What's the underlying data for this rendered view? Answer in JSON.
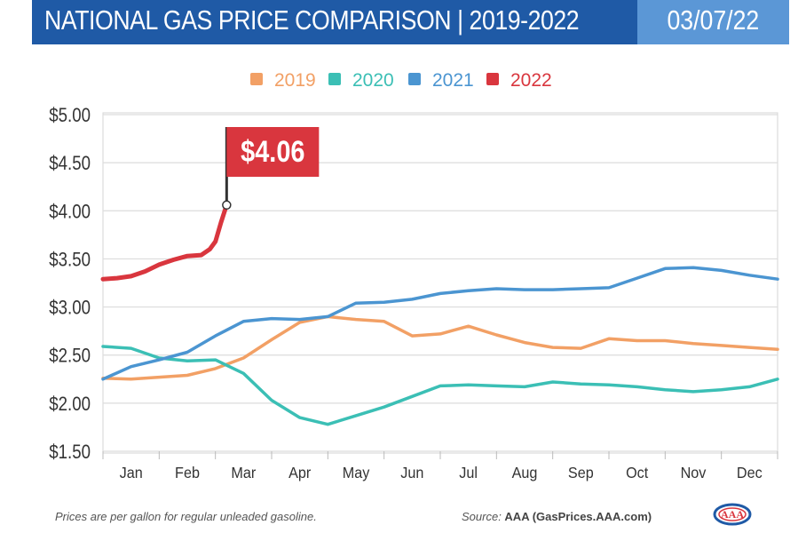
{
  "header": {
    "title": "NATIONAL GAS PRICE COMPARISON | 2019-2022",
    "date": "03/07/22"
  },
  "colors": {
    "2019": "#f2a065",
    "2020": "#3bbfb5",
    "2021": "#4b95d1",
    "2022": "#d9363e",
    "header_dark": "#1f5aa6",
    "header_light": "#5b97d6"
  },
  "chart_data": {
    "type": "line",
    "title": "NATIONAL GAS PRICE COMPARISON | 2019-2022",
    "categories": [
      "Jan",
      "Feb",
      "Mar",
      "Apr",
      "May",
      "Jun",
      "Jul",
      "Aug",
      "Sep",
      "Oct",
      "Nov",
      "Dec"
    ],
    "y_ticks": [
      "$5.00",
      "$4.50",
      "$4.00",
      "$3.50",
      "$3.00",
      "$2.50",
      "$2.00",
      "$1.50"
    ],
    "ylim": [
      1.5,
      5.0
    ],
    "grid": true,
    "legend": [
      "2019",
      "2020",
      "2021",
      "2022"
    ],
    "legend_position": "top",
    "callout": {
      "label": "$4.06",
      "x": 2.2,
      "y": 4.06
    },
    "series": [
      {
        "name": "2019",
        "x": [
          0,
          0.5,
          1,
          1.5,
          2,
          2.5,
          3,
          3.5,
          4,
          4.5,
          5,
          5.5,
          6,
          6.5,
          7,
          7.5,
          8,
          8.5,
          9,
          9.5,
          10,
          10.5,
          11,
          11.5,
          12
        ],
        "values": [
          2.26,
          2.25,
          2.27,
          2.29,
          2.36,
          2.47,
          2.66,
          2.84,
          2.9,
          2.87,
          2.85,
          2.7,
          2.72,
          2.8,
          2.71,
          2.63,
          2.58,
          2.57,
          2.67,
          2.65,
          2.65,
          2.62,
          2.6,
          2.58,
          2.56
        ]
      },
      {
        "name": "2020",
        "x": [
          0,
          0.5,
          1,
          1.5,
          2,
          2.5,
          3,
          3.5,
          4,
          4.5,
          5,
          5.5,
          6,
          6.5,
          7,
          7.5,
          8,
          8.5,
          9,
          9.5,
          10,
          10.5,
          11,
          11.5,
          12
        ],
        "values": [
          2.59,
          2.57,
          2.47,
          2.44,
          2.45,
          2.31,
          2.03,
          1.85,
          1.78,
          1.87,
          1.96,
          2.07,
          2.18,
          2.19,
          2.18,
          2.17,
          2.22,
          2.2,
          2.19,
          2.17,
          2.14,
          2.12,
          2.14,
          2.17,
          2.25
        ]
      },
      {
        "name": "2021",
        "x": [
          0,
          0.5,
          1,
          1.5,
          2,
          2.5,
          3,
          3.5,
          4,
          4.5,
          5,
          5.5,
          6,
          6.5,
          7,
          7.5,
          8,
          8.5,
          9,
          9.5,
          10,
          10.5,
          11,
          11.5,
          12
        ],
        "values": [
          2.25,
          2.38,
          2.45,
          2.53,
          2.7,
          2.85,
          2.88,
          2.87,
          2.9,
          3.04,
          3.05,
          3.08,
          3.14,
          3.17,
          3.19,
          3.18,
          3.18,
          3.19,
          3.2,
          3.3,
          3.4,
          3.41,
          3.38,
          3.33,
          3.29
        ]
      },
      {
        "name": "2022",
        "x": [
          0,
          0.25,
          0.5,
          0.75,
          1,
          1.25,
          1.5,
          1.75,
          1.9,
          2.0,
          2.1,
          2.2
        ],
        "values": [
          3.29,
          3.3,
          3.32,
          3.37,
          3.44,
          3.49,
          3.53,
          3.54,
          3.6,
          3.68,
          3.88,
          4.06
        ]
      }
    ]
  },
  "footer": {
    "note": "Prices are per gallon for regular unleaded gasoline.",
    "source_prefix": "Source: ",
    "source_name": "AAA (GasPrices.AAA.com)",
    "logo_text": "AAA"
  }
}
